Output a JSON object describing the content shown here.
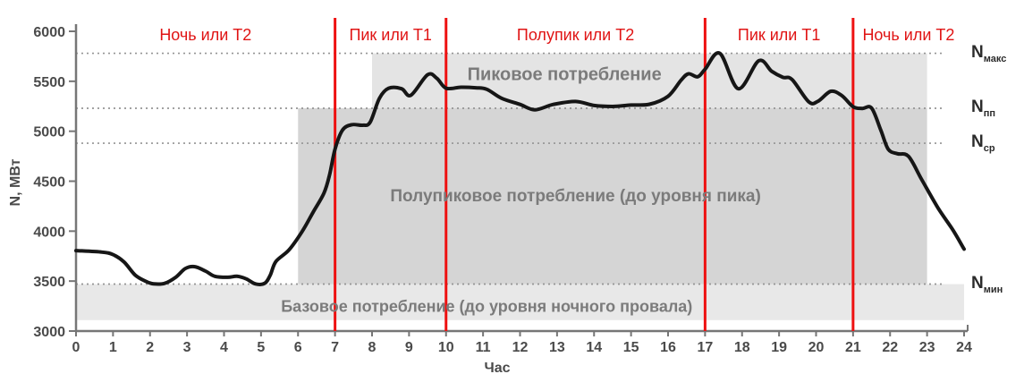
{
  "chart_data": {
    "type": "line",
    "title": "",
    "xlabel": "Час",
    "ylabel": "N, МВт",
    "xlim": [
      0,
      24
    ],
    "ylim": [
      3000,
      6000
    ],
    "x_ticks": [
      0,
      1,
      2,
      3,
      4,
      5,
      6,
      7,
      8,
      9,
      10,
      11,
      12,
      13,
      14,
      15,
      16,
      17,
      18,
      19,
      20,
      21,
      22,
      23,
      24
    ],
    "y_ticks": [
      3000,
      3500,
      4000,
      4500,
      5000,
      5500,
      6000
    ],
    "grid": false,
    "legend": false,
    "points": [
      [
        0,
        3805
      ],
      [
        0.7,
        3790
      ],
      [
        1.0,
        3765
      ],
      [
        1.3,
        3690
      ],
      [
        1.6,
        3560
      ],
      [
        1.9,
        3495
      ],
      [
        2.1,
        3472
      ],
      [
        2.4,
        3478
      ],
      [
        2.7,
        3540
      ],
      [
        2.95,
        3625
      ],
      [
        3.2,
        3645
      ],
      [
        3.5,
        3600
      ],
      [
        3.75,
        3548
      ],
      [
        4.1,
        3538
      ],
      [
        4.35,
        3548
      ],
      [
        4.6,
        3522
      ],
      [
        4.85,
        3472
      ],
      [
        5.1,
        3478
      ],
      [
        5.25,
        3560
      ],
      [
        5.4,
        3695
      ],
      [
        5.75,
        3810
      ],
      [
        6.1,
        3990
      ],
      [
        6.4,
        4185
      ],
      [
        6.7,
        4380
      ],
      [
        6.85,
        4560
      ],
      [
        7.0,
        4820
      ],
      [
        7.2,
        5010
      ],
      [
        7.45,
        5065
      ],
      [
        7.75,
        5060
      ],
      [
        7.95,
        5090
      ],
      [
        8.2,
        5330
      ],
      [
        8.45,
        5430
      ],
      [
        8.8,
        5425
      ],
      [
        9.05,
        5360
      ],
      [
        9.5,
        5565
      ],
      [
        9.75,
        5530
      ],
      [
        10.0,
        5430
      ],
      [
        10.4,
        5440
      ],
      [
        10.8,
        5435
      ],
      [
        11.1,
        5420
      ],
      [
        11.5,
        5330
      ],
      [
        12.0,
        5268
      ],
      [
        12.4,
        5215
      ],
      [
        12.9,
        5268
      ],
      [
        13.5,
        5298
      ],
      [
        14.0,
        5258
      ],
      [
        14.5,
        5248
      ],
      [
        15.0,
        5262
      ],
      [
        15.5,
        5270
      ],
      [
        16.0,
        5350
      ],
      [
        16.35,
        5510
      ],
      [
        16.55,
        5575
      ],
      [
        16.8,
        5545
      ],
      [
        17.0,
        5620
      ],
      [
        17.4,
        5780
      ],
      [
        17.9,
        5425
      ],
      [
        18.45,
        5705
      ],
      [
        18.8,
        5600
      ],
      [
        19.1,
        5540
      ],
      [
        19.35,
        5518
      ],
      [
        19.8,
        5295
      ],
      [
        20.05,
        5300
      ],
      [
        20.4,
        5400
      ],
      [
        20.7,
        5355
      ],
      [
        21.0,
        5245
      ],
      [
        21.25,
        5228
      ],
      [
        21.5,
        5232
      ],
      [
        21.75,
        5010
      ],
      [
        21.95,
        4820
      ],
      [
        22.2,
        4775
      ],
      [
        22.5,
        4748
      ],
      [
        22.85,
        4520
      ],
      [
        23.3,
        4230
      ],
      [
        23.7,
        4010
      ],
      [
        24.0,
        3820
      ]
    ],
    "reference_lines": [
      {
        "label": "N",
        "subscript": "макс",
        "value": 5780
      },
      {
        "label": "N",
        "subscript": "пп",
        "value": 5230
      },
      {
        "label": "N",
        "subscript": "ср",
        "value": 4880
      },
      {
        "label": "N",
        "subscript": "мин",
        "value": 3470
      }
    ],
    "boundaries": {
      "hours": [
        7,
        10,
        17,
        21
      ]
    },
    "periods": [
      {
        "label": "Ночь или Т2",
        "from": 0,
        "to": 7
      },
      {
        "label": "Пик или Т1",
        "from": 7,
        "to": 10
      },
      {
        "label": "Полупик или Т2",
        "from": 10,
        "to": 17
      },
      {
        "label": "Пик или Т1",
        "from": 17,
        "to": 21
      },
      {
        "label": "Ночь или Т2",
        "from": 21,
        "to": 24
      }
    ],
    "zones": [
      {
        "id": "peak",
        "label": "Пиковое потребление",
        "x0": 8,
        "x1": 23,
        "y0": 5230,
        "y1": 5780,
        "color": "#e4e4e4",
        "label_at": [
          13.2,
          5560
        ],
        "label_size": 20
      },
      {
        "id": "semi-peak",
        "label": "Полупиковое потребление (до уровня пика)",
        "x0": 6,
        "x1": 23,
        "y0": 3470,
        "y1": 5230,
        "color": "#d5d5d5",
        "label_at": [
          13.5,
          4340
        ],
        "label_size": 19
      },
      {
        "id": "base",
        "label": "Базовое потребление (до уровня ночного провала)",
        "x0": 0,
        "x1": 24,
        "y0": 3110,
        "y1": 3470,
        "color": "#e8e8e8",
        "label_at": [
          11.1,
          3240
        ],
        "label_size": 18
      }
    ],
    "colors": {
      "curve": "#161616",
      "boundary_line": "#ee1111",
      "period_label": "#e01414",
      "zone_label": "#7b7b7b",
      "ref_label": "#2b2b2b",
      "axis": "#767676",
      "dotted": "#949494"
    }
  }
}
